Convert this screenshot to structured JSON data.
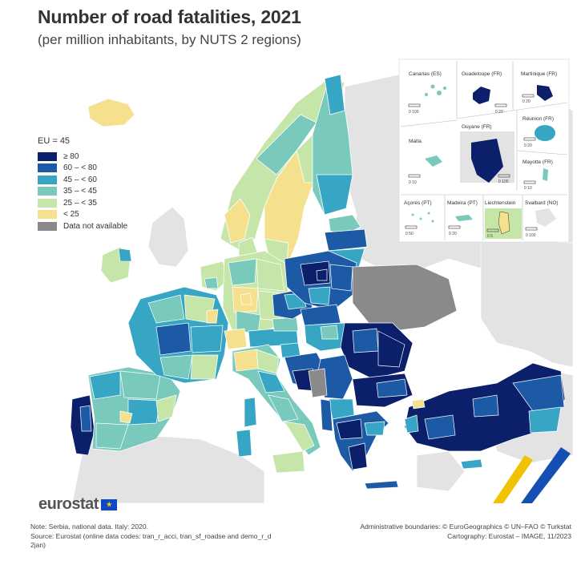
{
  "title": "Number of road fatalities, 2021",
  "subtitle": "(per million inhabitants, by NUTS 2 regions)",
  "legend": {
    "eu_label": "EU = 45",
    "classes": [
      {
        "label": "≥ 80",
        "color": "#0b1f6b"
      },
      {
        "label": "60 – < 80",
        "color": "#1d5aa6"
      },
      {
        "label": "45 – < 60",
        "color": "#37a6c4"
      },
      {
        "label": "35 – < 45",
        "color": "#79c9bd"
      },
      {
        "label": "25 – < 35",
        "color": "#c6e6a9"
      },
      {
        "label": "< 25",
        "color": "#f5e08e"
      },
      {
        "label": "Data not available",
        "color": "#8a8a8a"
      }
    ]
  },
  "insets": [
    {
      "name": "Canarias (ES)",
      "scale": "0  100"
    },
    {
      "name": "Guadeloupe (FR)",
      "scale": "0  20"
    },
    {
      "name": "Martinique (FR)",
      "scale": "0  20"
    },
    {
      "name": "Réunion (FR)",
      "scale": "0  20"
    },
    {
      "name": "Malta",
      "scale": "0  10"
    },
    {
      "name": "Guyane (FR)",
      "scale": "0  100"
    },
    {
      "name": "Mayotte (FR)",
      "scale": "0  10"
    },
    {
      "name": "Açores (PT)",
      "scale": "0  50"
    },
    {
      "name": "Madeira (PT)",
      "scale": "0  20"
    },
    {
      "name": "Liechtenstein",
      "scale": "0  5"
    },
    {
      "name": "Svalbard (NO)",
      "scale": "0  100"
    }
  ],
  "logo": "eurostat",
  "note_lines": [
    "Note: Serbia, national data. Italy: 2020.",
    "Source: Eurostat (online data codes: tran_r_acci, tran_sf_roadse and demo_r_d",
    "2jan)"
  ],
  "credit_lines": [
    "Administrative boundaries: © EuroGeographics © UN–FAO © Turkstat",
    "Cartography: Eurostat – IMAGE, 11/2023"
  ]
}
